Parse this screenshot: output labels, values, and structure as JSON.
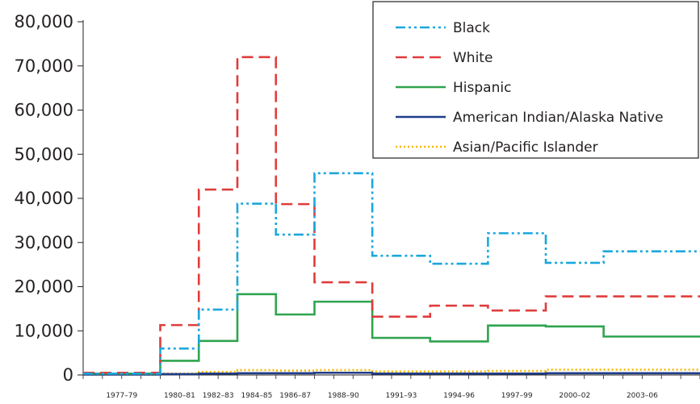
{
  "chart_data": {
    "type": "line",
    "step": true,
    "title": "",
    "xlabel": "",
    "ylabel": "",
    "ylim": [
      0,
      80000
    ],
    "y_ticks": [
      {
        "value": 0,
        "label": "0"
      },
      {
        "value": 10000,
        "label": "10,000"
      },
      {
        "value": 20000,
        "label": "20,000"
      },
      {
        "value": 30000,
        "label": "30,000"
      },
      {
        "value": 40000,
        "label": "40,000"
      },
      {
        "value": 50000,
        "label": "50,000"
      },
      {
        "value": 60000,
        "label": "60,000"
      },
      {
        "value": 70000,
        "label": "70,000"
      },
      {
        "value": 80000,
        "label": "80,000"
      }
    ],
    "x_year_range": [
      1976,
      2008
    ],
    "x_tick_labels": [
      {
        "label": "1977–79",
        "center": 1978
      },
      {
        "label": "1980–81",
        "center": 1981
      },
      {
        "label": "1982–83",
        "center": 1983
      },
      {
        "label": "1984–85",
        "center": 1985
      },
      {
        "label": "1986–87",
        "center": 1987
      },
      {
        "label": "1988–90",
        "center": 1989.5
      },
      {
        "label": "1991–93",
        "center": 1992.5
      },
      {
        "label": "1994–96",
        "center": 1995.5
      },
      {
        "label": "1997–99",
        "center": 1998.5
      },
      {
        "label": "2000–02",
        "center": 2001.5
      },
      {
        "label": "2003–06",
        "center": 2005
      }
    ],
    "periods": [
      {
        "start": 1976,
        "end": 1980
      },
      {
        "start": 1980,
        "end": 1982
      },
      {
        "start": 1982,
        "end": 1984
      },
      {
        "start": 1984,
        "end": 1986
      },
      {
        "start": 1986,
        "end": 1988
      },
      {
        "start": 1988,
        "end": 1991
      },
      {
        "start": 1991,
        "end": 1994
      },
      {
        "start": 1994,
        "end": 1997
      },
      {
        "start": 1997,
        "end": 2000
      },
      {
        "start": 2000,
        "end": 2003
      },
      {
        "start": 2003,
        "end": 2008
      }
    ],
    "series": [
      {
        "name": "Black",
        "color": "#1ba7dd",
        "dash": "12 4 3 4 3 4",
        "values": [
          300,
          6000,
          14800,
          38800,
          31800,
          45700,
          27000,
          25200,
          32100,
          25400,
          28000
        ]
      },
      {
        "name": "White",
        "color": "#e03c3c",
        "dash": "14 7",
        "values": [
          500,
          11300,
          42000,
          72000,
          38700,
          21000,
          13200,
          15700,
          14600,
          17800,
          17800
        ]
      },
      {
        "name": "Hispanic",
        "color": "#2fa44f",
        "dash": "",
        "values": [
          300,
          3200,
          7700,
          18300,
          13700,
          16600,
          8400,
          7600,
          11200,
          11000,
          8700
        ]
      },
      {
        "name": "American Indian/Alaska Native",
        "color": "#1f3d8a",
        "dash": "",
        "values": [
          100,
          200,
          300,
          400,
          400,
          500,
          300,
          300,
          300,
          400,
          400
        ]
      },
      {
        "name": "Asian/Pacific Islander",
        "color": "#f5b800",
        "dash": "2 3",
        "values": [
          100,
          300,
          700,
          1100,
          1000,
          1100,
          800,
          800,
          900,
          1200,
          1200
        ]
      }
    ],
    "grid": false,
    "legend_position": "top-right"
  }
}
